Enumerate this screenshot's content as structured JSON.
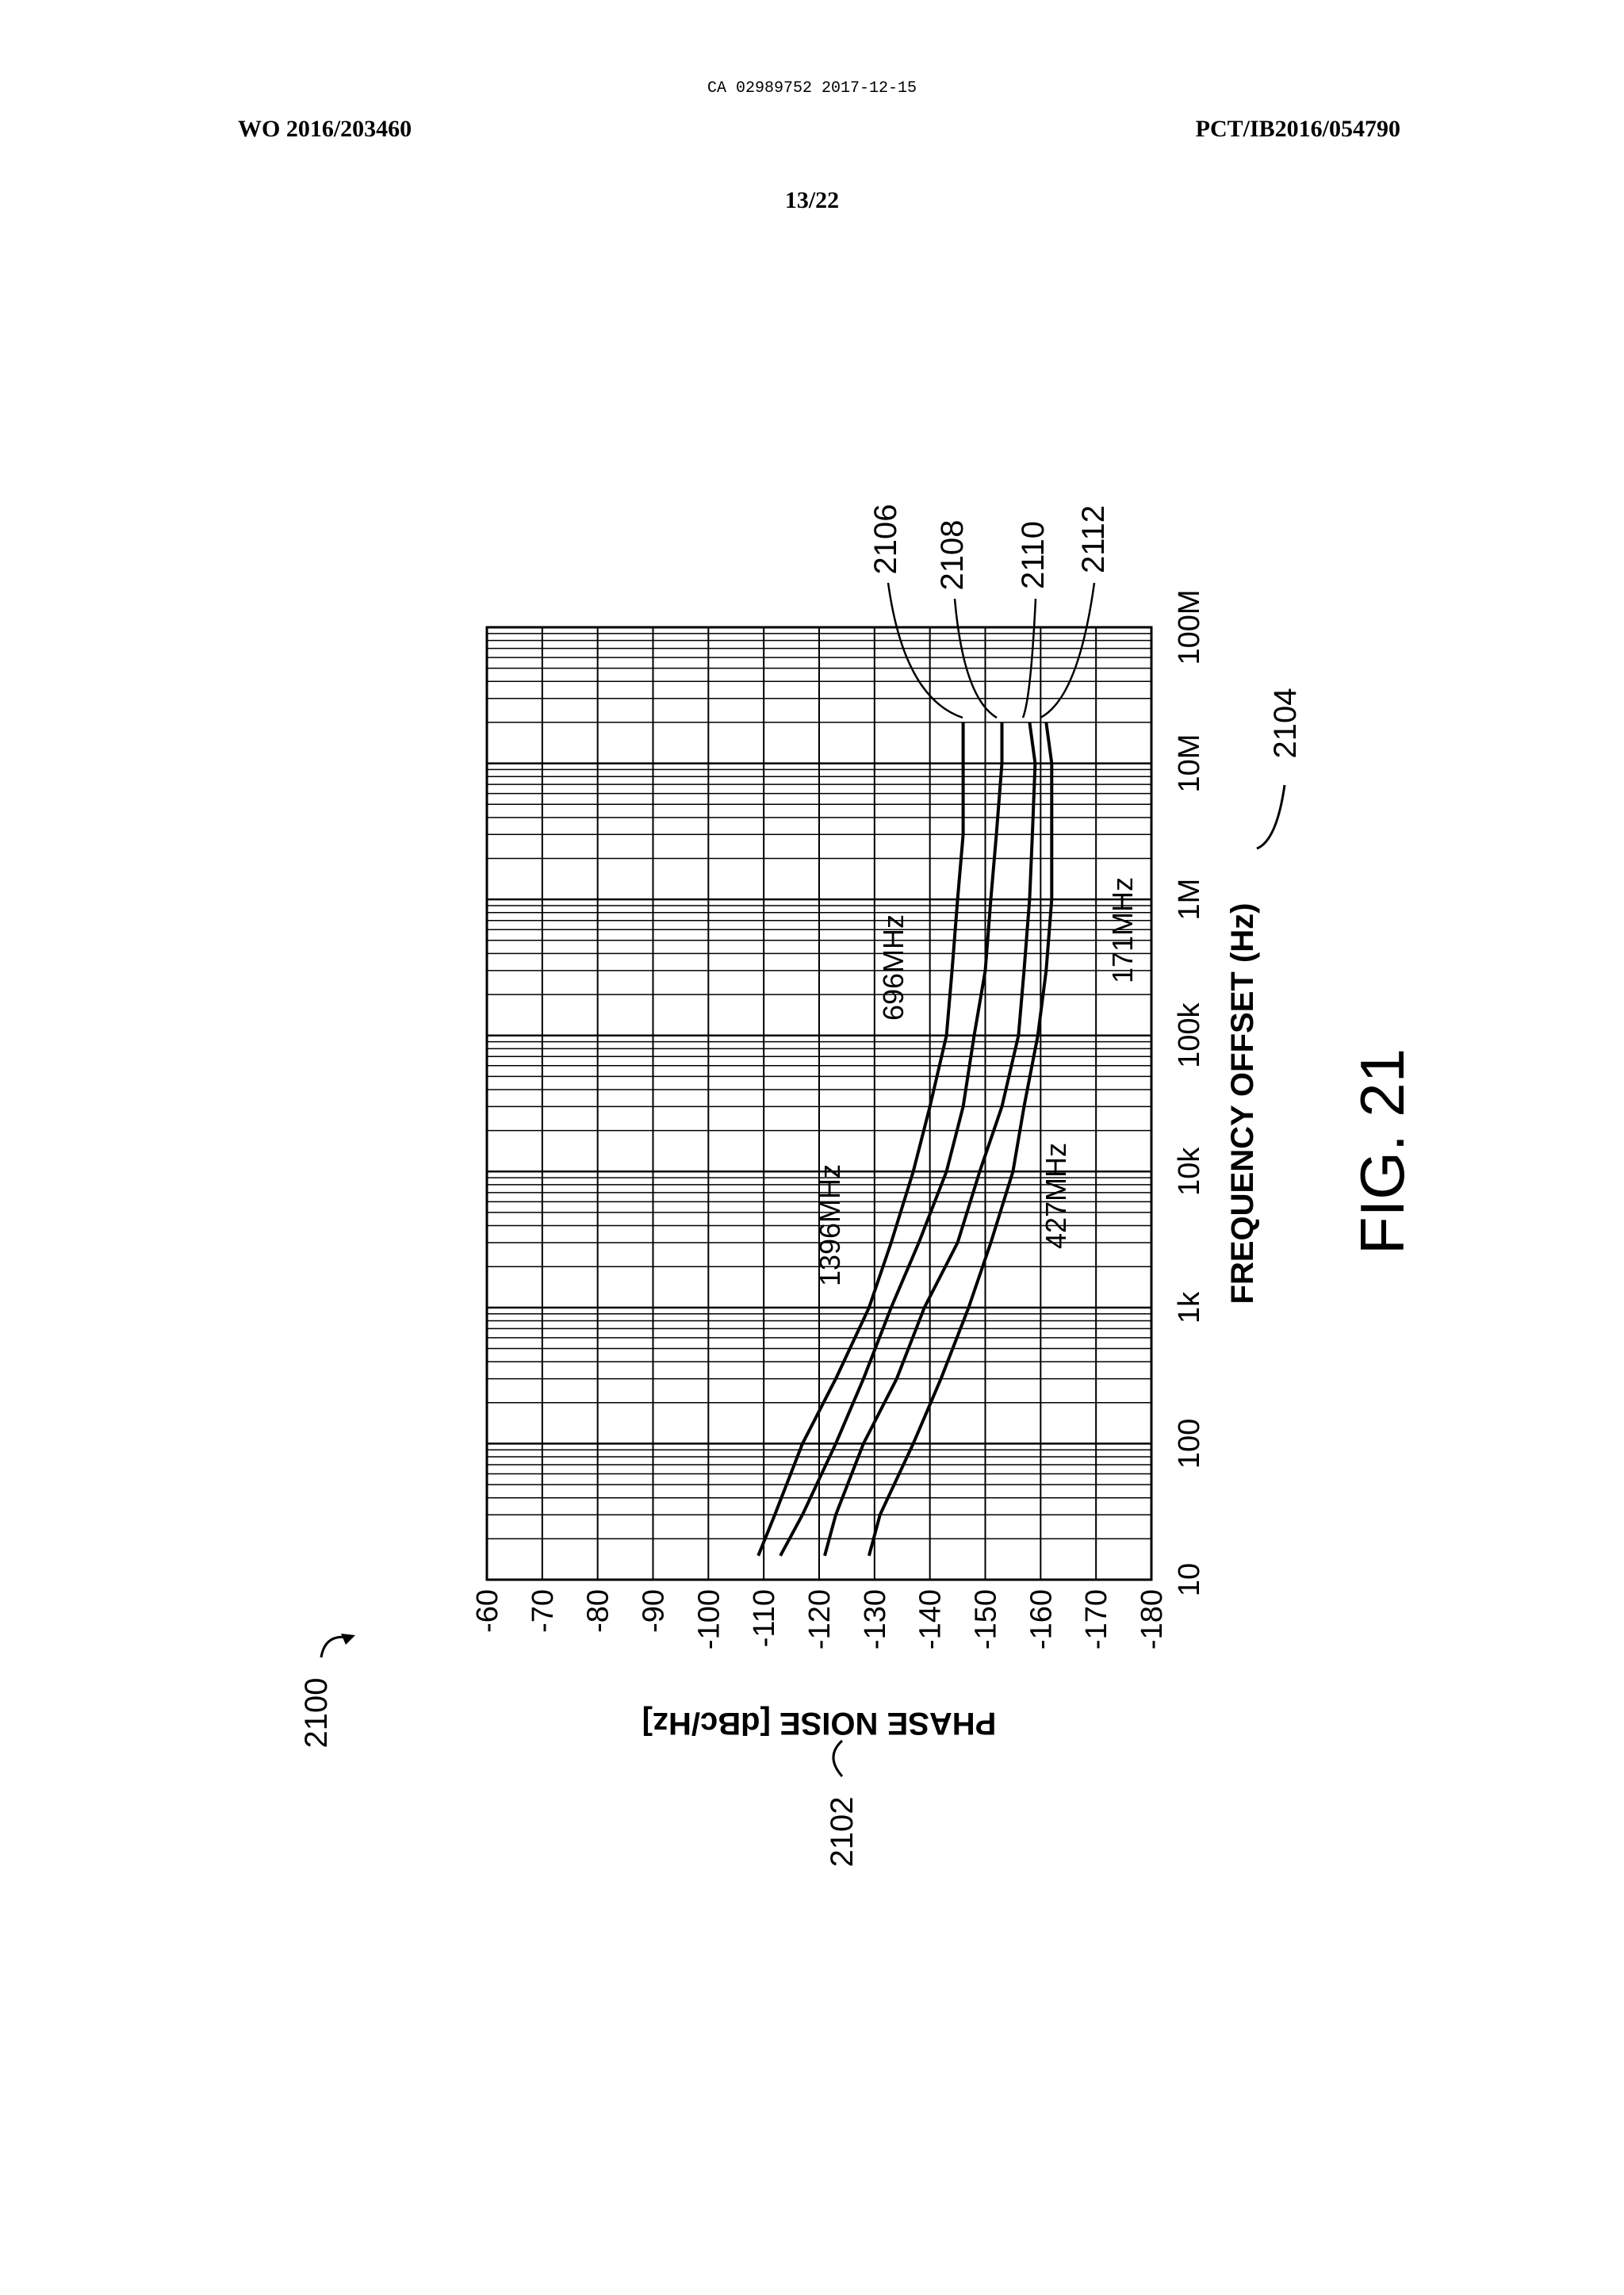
{
  "header": {
    "stamp": "CA 02989752 2017-12-15",
    "publication": "WO 2016/203460",
    "application": "PCT/IB2016/054790",
    "sheet": "13/22"
  },
  "figure_label": "FIG. 21",
  "chart_data": {
    "type": "line",
    "figure_ref": "2100",
    "y_label": "PHASE NOISE [dBc/Hz]",
    "y_label_ref": "2102",
    "x_label": "FREQUENCY OFFSET (Hz)",
    "x_label_ref": "2104",
    "x_log": true,
    "grid": true,
    "minor_grid": true,
    "xlim": [
      10,
      100000000
    ],
    "xticks": [
      10,
      100,
      {
        "value": 1000,
        "label": "1k"
      },
      {
        "value": 10000,
        "label": "10k"
      },
      {
        "value": 100000,
        "label": "100k"
      },
      {
        "value": 1000000,
        "label": "1M"
      },
      {
        "value": 10000000,
        "label": "10M"
      },
      {
        "value": 100000000,
        "label": "100M"
      }
    ],
    "ylim": [
      -180,
      -60
    ],
    "yticks": [
      -60,
      -70,
      -80,
      -90,
      -100,
      -110,
      -120,
      -130,
      -140,
      -150,
      -160,
      -170,
      -180
    ],
    "x": [
      15,
      30,
      100,
      300,
      1000,
      3000,
      10000,
      30000,
      100000,
      300000,
      1000000,
      3000000,
      10000000,
      20000000
    ],
    "series": [
      {
        "name": "1396MHz",
        "ref": "2106",
        "color": "#000000",
        "values": [
          -109,
          -112,
          -117,
          -123,
          -129,
          -133,
          -137,
          -140,
          -143,
          -144,
          -145,
          -146,
          -146,
          -146
        ]
      },
      {
        "name": "696MHz",
        "ref": "2108",
        "color": "#000000",
        "values": [
          -113,
          -117,
          -123,
          -128,
          -133,
          -138,
          -143,
          -146,
          -148,
          -150,
          -151,
          -152,
          -153,
          -153
        ]
      },
      {
        "name": "427MHz",
        "ref": "2110",
        "color": "#000000",
        "values": [
          -121,
          -123,
          -128,
          -134,
          -139,
          -145,
          -149,
          -153,
          -156,
          -157,
          -158,
          -158.5,
          -159,
          -158
        ]
      },
      {
        "name": "171MHz",
        "ref": "2112",
        "color": "#000000",
        "values": [
          -129,
          -131,
          -137,
          -142,
          -147,
          -151,
          -155,
          -157,
          -159.5,
          -161,
          -162,
          -162,
          -162,
          -161
        ]
      }
    ]
  }
}
